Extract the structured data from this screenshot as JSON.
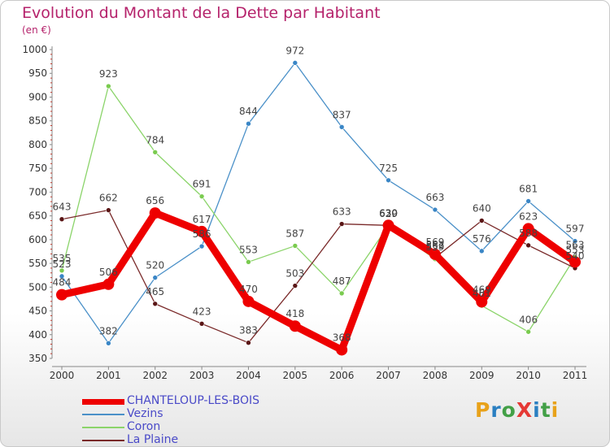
{
  "header": {
    "title": "Evolution du Montant de la Dette par Habitant",
    "subtitle": "(en €)"
  },
  "logo": {
    "text": "ProXiti",
    "colors": [
      "#e8a21a",
      "#2a7fc1",
      "#43a047",
      "#e53935",
      "#2a7fc1",
      "#43a047",
      "#e8a21a"
    ]
  },
  "chart_data": {
    "type": "line",
    "title": "Evolution du Montant de la Dette par Habitant",
    "ylabel": "(en €)",
    "xlabel": "",
    "ylim": [
      350,
      1000
    ],
    "yticks": [
      350,
      400,
      450,
      500,
      550,
      600,
      650,
      700,
      750,
      800,
      850,
      900,
      950,
      1000
    ],
    "categories": [
      "2000",
      "2001",
      "2002",
      "2003",
      "2004",
      "2005",
      "2006",
      "2007",
      "2008",
      "2009",
      "2010",
      "2011"
    ],
    "grid": false,
    "legend_position": "bottom-left",
    "series": [
      {
        "name": "Vezins",
        "color": "#4a90c8",
        "marker": "#3a86c6",
        "values": [
          523,
          382,
          520,
          586,
          844,
          972,
          837,
          725,
          663,
          576,
          681,
          597
        ]
      },
      {
        "name": "Coron",
        "color": "#8bd46a",
        "marker": "#7acb4f",
        "values": [
          535,
          923,
          784,
          691,
          553,
          587,
          487,
          629,
          559,
          461,
          406,
          563
        ]
      },
      {
        "name": "La Plaine",
        "color": "#7a2a2a",
        "marker": "#5a1616",
        "values": [
          643,
          662,
          465,
          423,
          383,
          503,
          633,
          630,
          562,
          640,
          588,
          540
        ]
      },
      {
        "name": "CHANTELOUP-LES-BOIS",
        "color": "#ee0000",
        "marker": "#ee0000",
        "values": [
          484,
          506,
          656,
          617,
          470,
          418,
          368,
          630,
          569,
          469,
          623,
          553
        ]
      }
    ]
  }
}
